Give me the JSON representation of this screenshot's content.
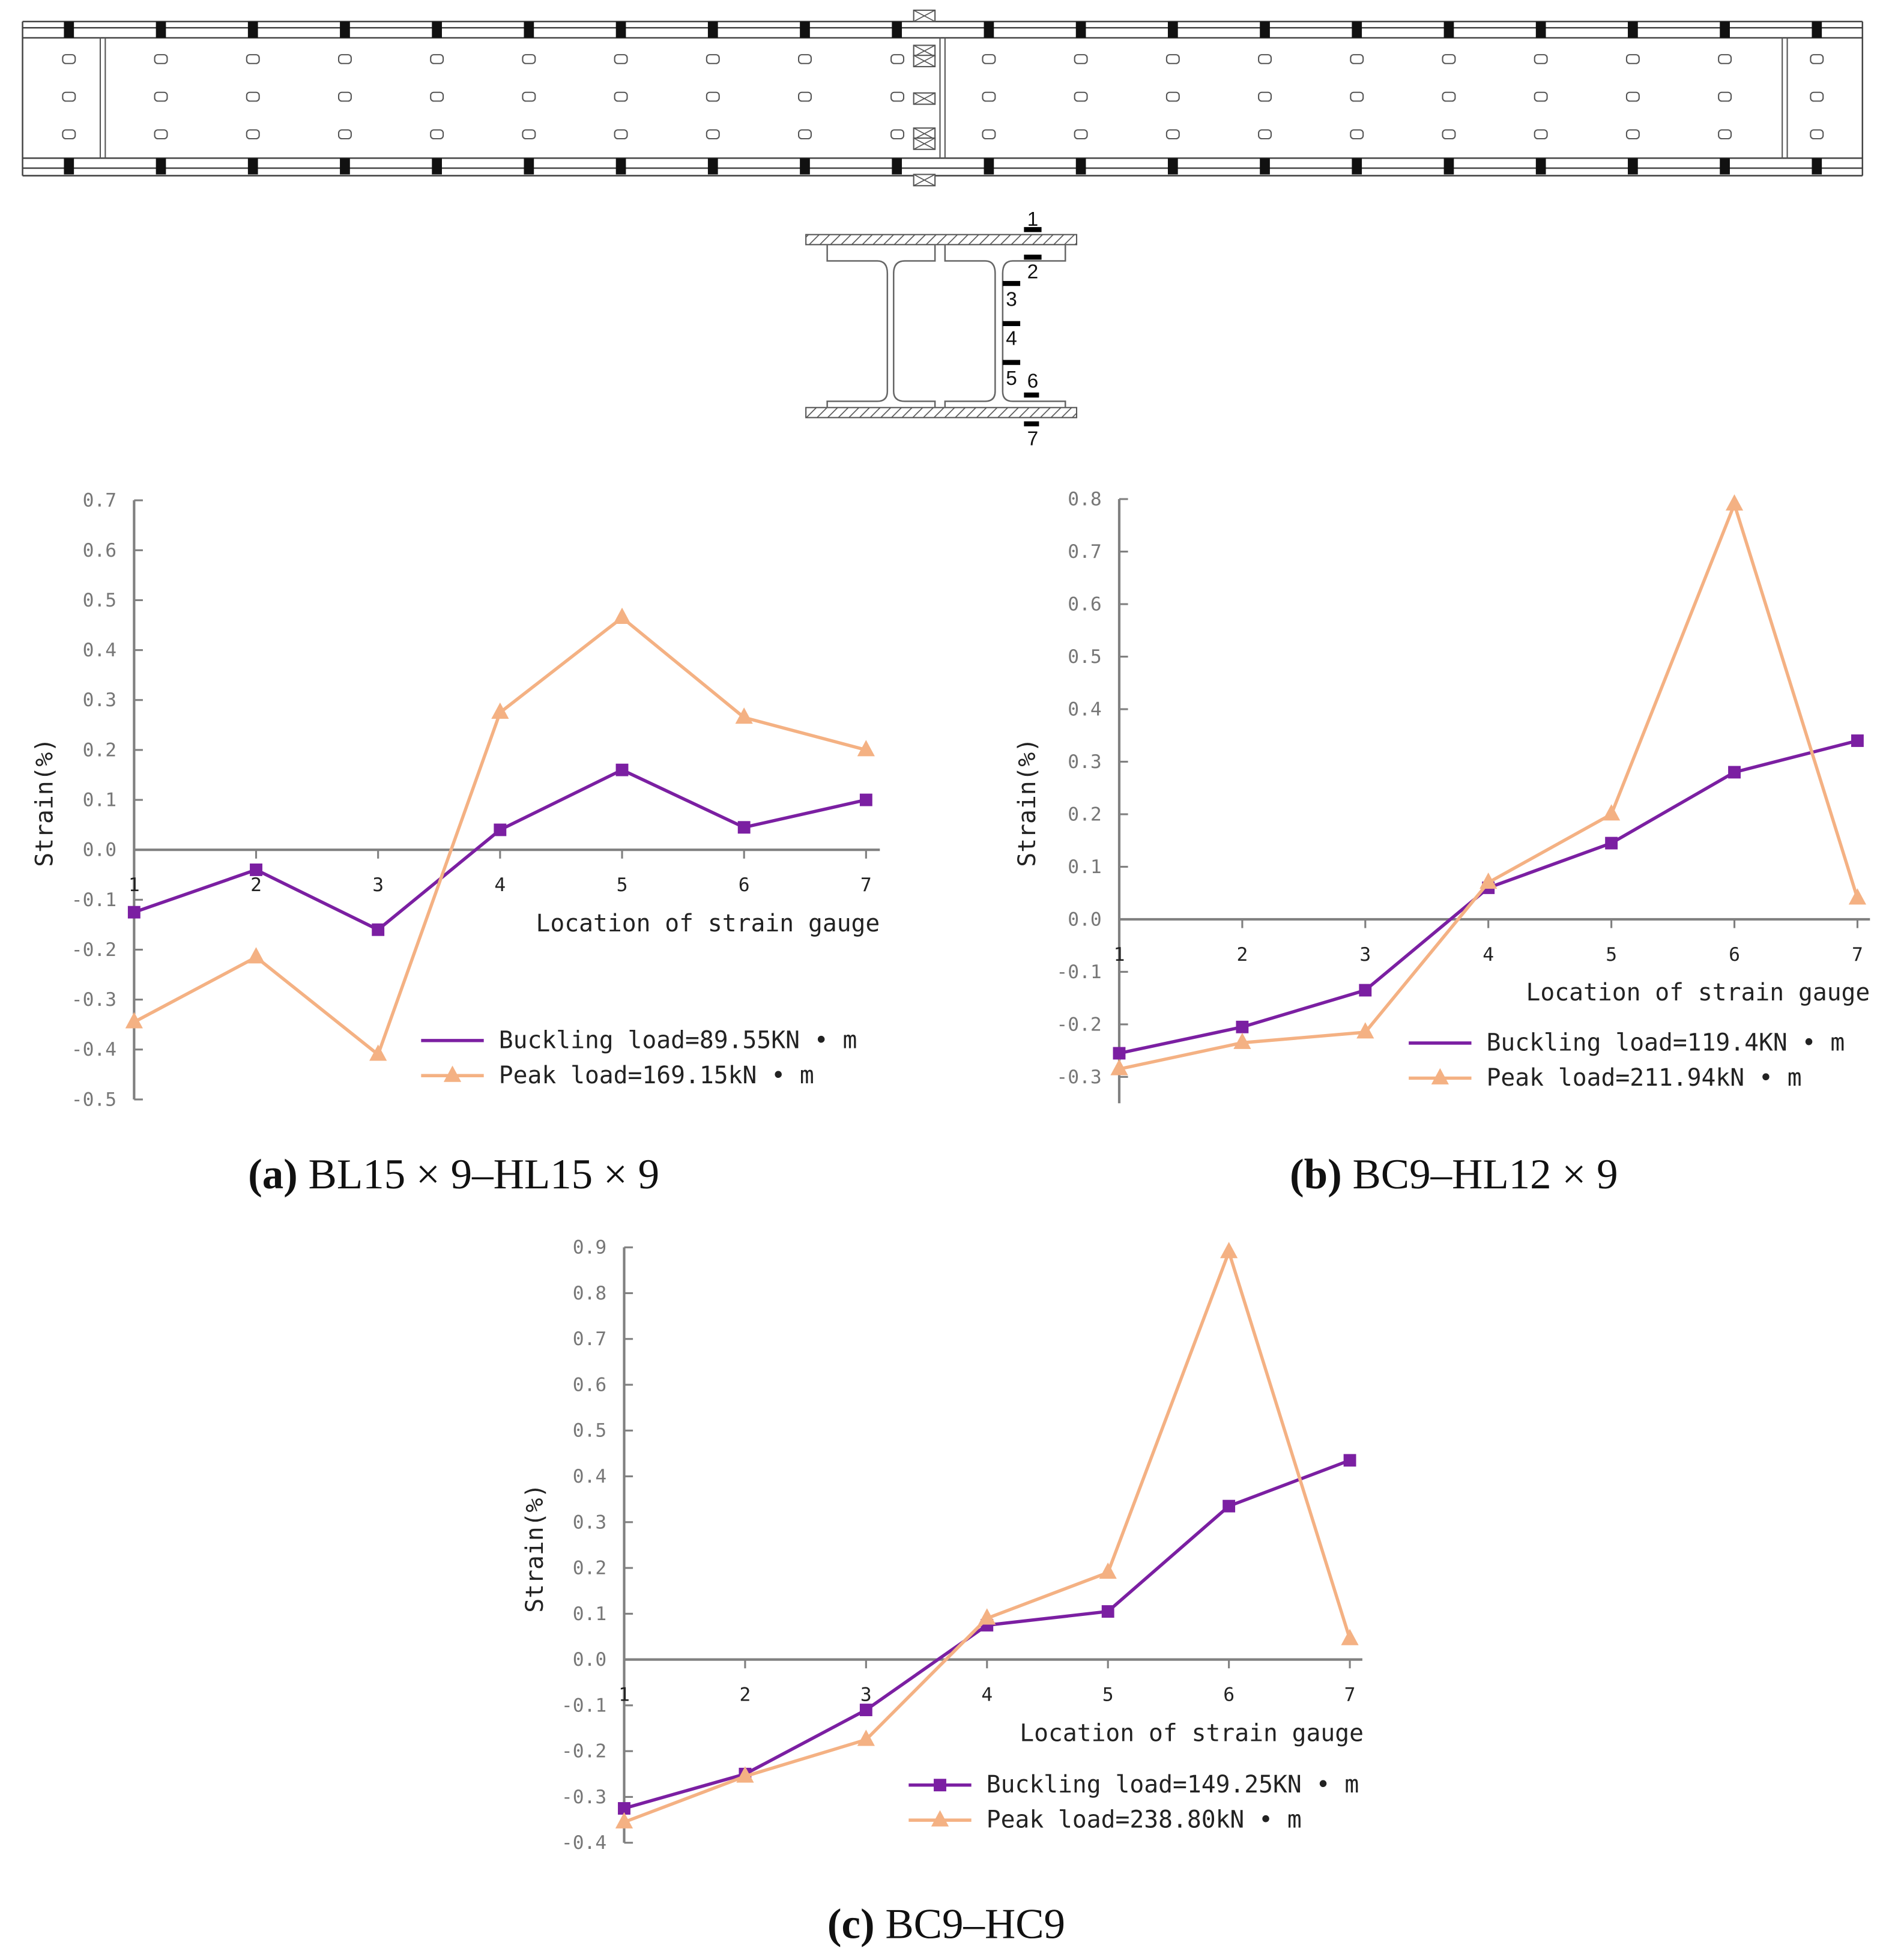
{
  "colors": {
    "buckling": "#7b1fa2",
    "peak": "#f4b183",
    "axis": "#808080"
  },
  "section": {
    "gauge_labels": [
      "1",
      "2",
      "3",
      "4",
      "5",
      "6",
      "7"
    ]
  },
  "chart_data": [
    {
      "type": "line",
      "panel": "a",
      "caption_letter": "(a)",
      "caption_text": " BL15 × 9–HL15 × 9",
      "xlabel": "Location of strain gauge",
      "ylabel": "Strain(%)",
      "categories": [
        1,
        2,
        3,
        4,
        5,
        6,
        7
      ],
      "ylim": [
        -0.5,
        0.7
      ],
      "yticks": [
        -0.5,
        -0.4,
        -0.3,
        -0.2,
        -0.1,
        0.0,
        0.1,
        0.2,
        0.3,
        0.4,
        0.5,
        0.6,
        0.7
      ],
      "legend": "bottom-right",
      "series": [
        {
          "name": "Buckling load=89.55KN • m",
          "marker": "square",
          "values": [
            -0.125,
            -0.04,
            -0.16,
            0.04,
            0.16,
            0.045,
            0.1
          ]
        },
        {
          "name": "Peak load=169.15kN • m",
          "marker": "triangle",
          "values": [
            -0.345,
            -0.215,
            -0.41,
            0.275,
            0.465,
            0.265,
            0.2
          ]
        }
      ]
    },
    {
      "type": "line",
      "panel": "b",
      "caption_letter": "(b)",
      "caption_text": " BC9–HL12 × 9",
      "xlabel": "Location of strain gauge",
      "ylabel": "Strain(%)",
      "categories": [
        1,
        2,
        3,
        4,
        5,
        6,
        7
      ],
      "ylim": [
        -0.3,
        0.8
      ],
      "yticks": [
        -0.3,
        -0.2,
        -0.1,
        0.0,
        0.1,
        0.2,
        0.3,
        0.4,
        0.5,
        0.6,
        0.7,
        0.8
      ],
      "legend": "bottom-right",
      "series": [
        {
          "name": "Buckling load=119.4KN • m",
          "marker": "square",
          "values": [
            -0.255,
            -0.205,
            -0.135,
            0.06,
            0.145,
            0.28,
            0.34
          ]
        },
        {
          "name": "Peak load=211.94kN • m",
          "marker": "triangle",
          "values": [
            -0.285,
            -0.235,
            -0.215,
            0.07,
            0.2,
            0.79,
            0.04
          ]
        }
      ]
    },
    {
      "type": "line",
      "panel": "c",
      "caption_letter": "(c)",
      "caption_text": " BC9–HC9",
      "xlabel": "Location of strain gauge",
      "ylabel": "Strain(%)",
      "categories": [
        1,
        2,
        3,
        4,
        5,
        6,
        7
      ],
      "ylim": [
        -0.4,
        0.9
      ],
      "yticks": [
        -0.4,
        -0.3,
        -0.2,
        -0.1,
        0.0,
        0.1,
        0.2,
        0.3,
        0.4,
        0.5,
        0.6,
        0.7,
        0.8,
        0.9
      ],
      "legend": "bottom-right",
      "series": [
        {
          "name": "Buckling load=149.25KN • m",
          "marker": "square",
          "values": [
            -0.325,
            -0.25,
            -0.11,
            0.075,
            0.105,
            0.335,
            0.435
          ]
        },
        {
          "name": "Peak load=238.80kN • m",
          "marker": "triangle",
          "values": [
            -0.355,
            -0.255,
            -0.175,
            0.09,
            0.19,
            0.89,
            0.045
          ]
        }
      ]
    }
  ]
}
